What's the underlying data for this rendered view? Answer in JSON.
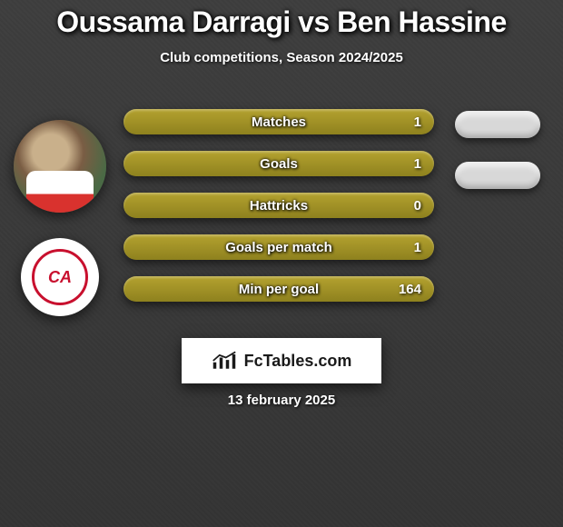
{
  "title": "Oussama Darragi vs Ben Hassine",
  "subtitle": "Club competitions, Season 2024/2025",
  "stats": [
    {
      "label": "Matches",
      "value": "1",
      "right_pill": true
    },
    {
      "label": "Goals",
      "value": "1",
      "right_pill": true
    },
    {
      "label": "Hattricks",
      "value": "0",
      "right_pill": false
    },
    {
      "label": "Goals per match",
      "value": "1",
      "right_pill": false
    },
    {
      "label": "Min per goal",
      "value": "164",
      "right_pill": false
    }
  ],
  "bar_color_start": "#b4a22f",
  "bar_color_end": "#8e811e",
  "pill_color": "#d8d8d8",
  "background_color": "#3a3a3a",
  "club_badge_text": "CA",
  "club_badge_color": "#c8102e",
  "brand": "FcTables.com",
  "date": "13 february 2025"
}
